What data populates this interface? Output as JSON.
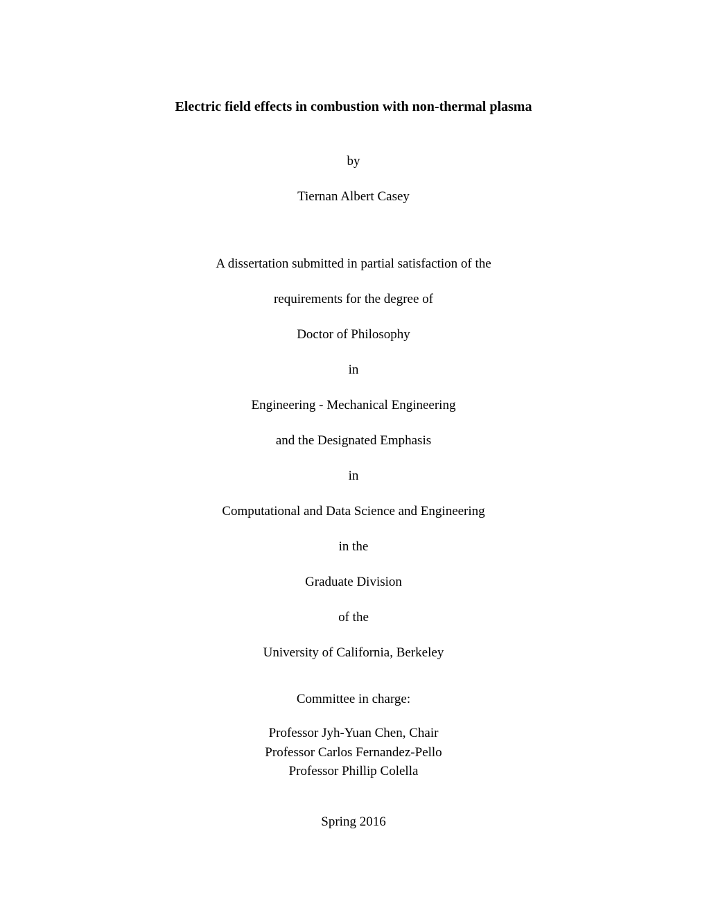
{
  "title": "Electric field effects in combustion with non-thermal plasma",
  "by": "by",
  "author": "Tiernan Albert Casey",
  "lines": {
    "l1": "A dissertation submitted in partial satisfaction of the",
    "l2": "requirements for the degree of",
    "l3": "Doctor of Philosophy",
    "l4": "in",
    "l5": "Engineering - Mechanical Engineering",
    "l6": "and the Designated Emphasis",
    "l7": "in",
    "l8": "Computational and Data Science and Engineering",
    "l9": "in the",
    "l10": "Graduate Division",
    "l11": "of the",
    "l12": "University of California, Berkeley"
  },
  "committee": {
    "header": "Committee in charge:",
    "members": {
      "m1": "Professor Jyh-Yuan Chen, Chair",
      "m2": "Professor Carlos Fernandez-Pello",
      "m3": "Professor Phillip Colella"
    }
  },
  "semester": "Spring 2016"
}
